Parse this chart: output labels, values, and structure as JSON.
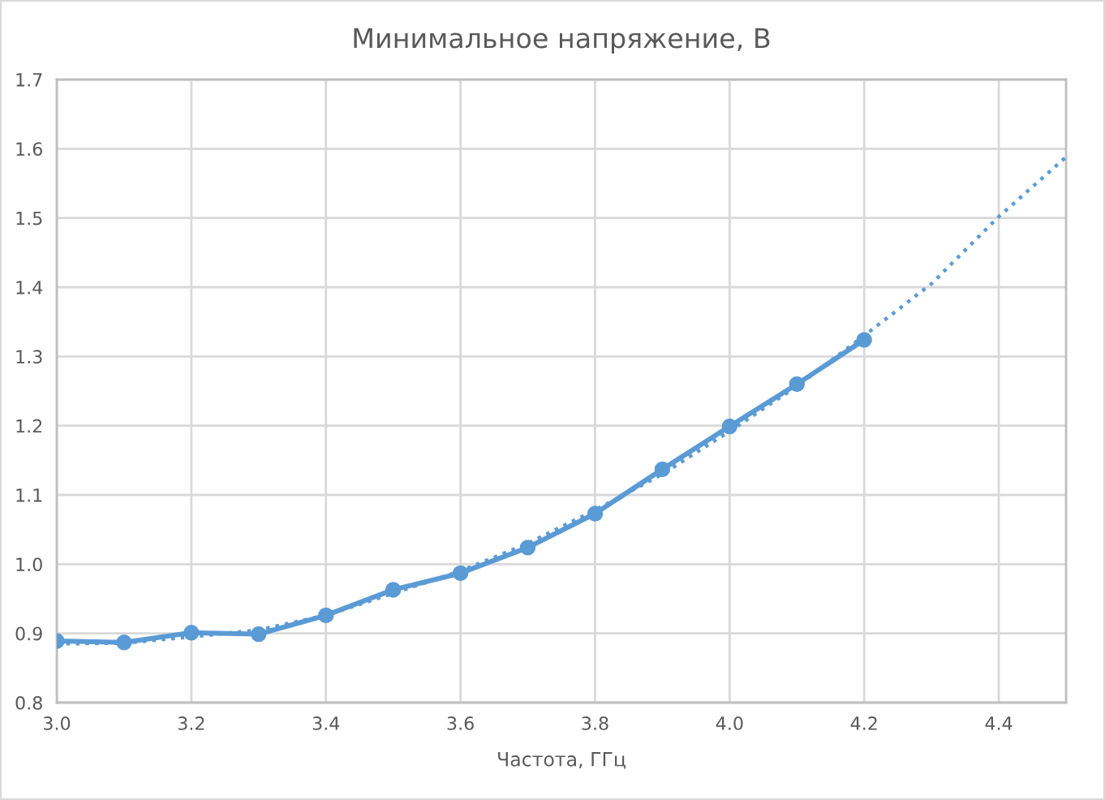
{
  "chart_data": {
    "type": "line",
    "title": "Минимальное напряжение, В",
    "xlabel": "Частота, ГГц",
    "series": [
      {
        "color": "#5b9bd5",
        "marker": "circle",
        "line_style": "solid",
        "x": [
          3.0,
          3.1,
          3.2,
          3.3,
          3.4,
          3.5,
          3.6,
          3.7,
          3.8,
          3.9,
          4.0,
          4.1,
          4.2
        ],
        "values": [
          0.889,
          0.887,
          0.901,
          0.899,
          0.926,
          0.963,
          0.987,
          1.024,
          1.073,
          1.137,
          1.199,
          1.26,
          1.324
        ]
      },
      {
        "color": "#5b9bd5",
        "marker": "none",
        "line_style": "dotted",
        "x": [
          3.0,
          3.1,
          3.2,
          3.3,
          3.4,
          3.5,
          3.6,
          3.7,
          3.8,
          3.9,
          4.0,
          4.1,
          4.2,
          4.3,
          4.4,
          4.5
        ],
        "values": [
          0.885,
          0.886,
          0.895,
          0.905,
          0.926,
          0.958,
          0.99,
          1.03,
          1.078,
          1.13,
          1.192,
          1.257,
          1.33,
          1.405,
          1.502,
          1.588
        ]
      }
    ],
    "xlim": [
      3.0,
      4.5
    ],
    "xticks": [
      {
        "value": 3.0,
        "label": "3.0"
      },
      3.2,
      3.4,
      3.6,
      3.8,
      {
        "value": 4.0,
        "label": "4.0"
      },
      4.2,
      4.4
    ],
    "ylim": [
      0.8,
      1.7
    ],
    "yticks": [
      0.8,
      0.9,
      {
        "value": 1.0,
        "label": "1.0"
      },
      1.1,
      1.2,
      1.3,
      1.4,
      1.5,
      1.6,
      1.7
    ],
    "grid": true
  }
}
